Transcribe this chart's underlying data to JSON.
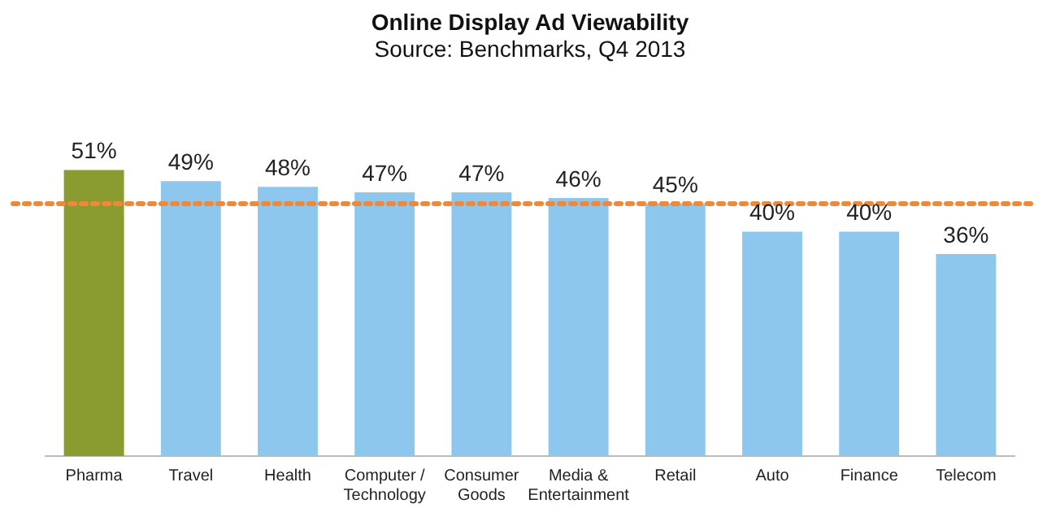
{
  "chart_data": {
    "type": "bar",
    "title": "Online Display Ad Viewability",
    "subtitle": "Source: Benchmarks, Q4 2013",
    "categories": [
      "Pharma",
      "Travel",
      "Health",
      "Computer / Technology",
      "Consumer Goods",
      "Media & Entertainment",
      "Retail",
      "Auto",
      "Finance",
      "Telecom"
    ],
    "values": [
      51,
      49,
      48,
      47,
      47,
      46,
      45,
      40,
      40,
      36
    ],
    "colors": [
      "#8a9b2f",
      "#8ec7ee",
      "#8ec7ee",
      "#8ec7ee",
      "#8ec7ee",
      "#8ec7ee",
      "#8ec7ee",
      "#8ec7ee",
      "#8ec7ee",
      "#8ec7ee"
    ],
    "value_labels": [
      "51%",
      "49%",
      "48%",
      "47%",
      "47%",
      "46%",
      "45%",
      "40%",
      "40%",
      "36%"
    ],
    "ref_lines": [
      {
        "axis": "y",
        "value": 45,
        "color": "#f0883a",
        "line_style": "dotted"
      }
    ],
    "grid": false,
    "legend": false,
    "tick_labels": "x"
  }
}
